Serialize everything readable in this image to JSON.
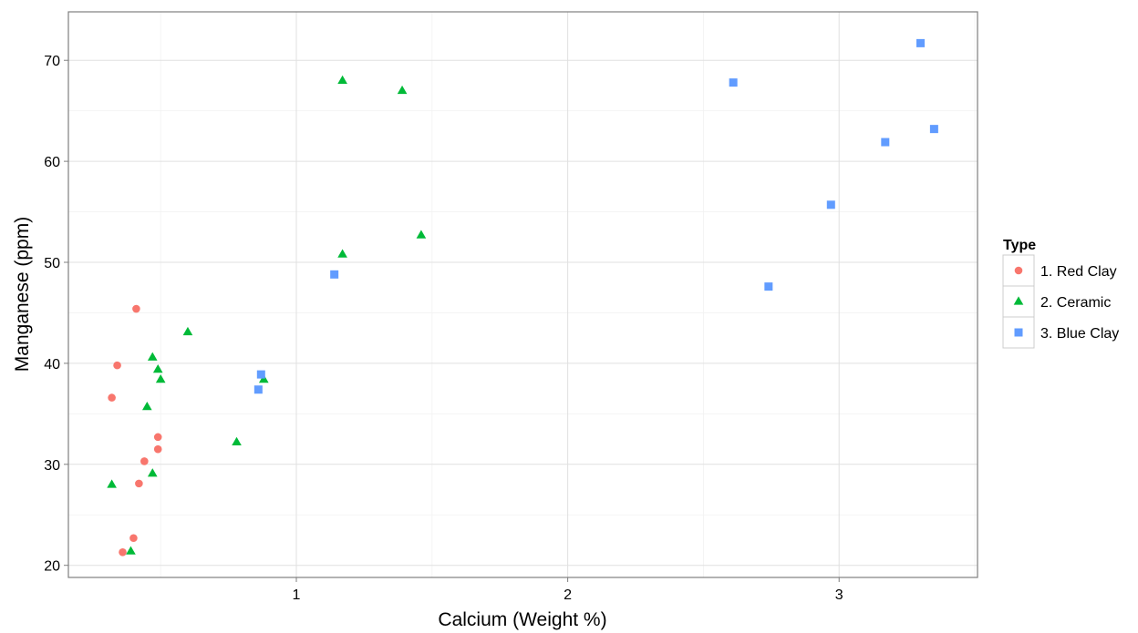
{
  "chart_data": {
    "type": "scatter",
    "xlabel": "Calcium (Weight %)",
    "ylabel": "Manganese (ppm)",
    "xlim": [
      0.16,
      3.51
    ],
    "ylim": [
      18.8,
      74.8
    ],
    "x_ticks": [
      1,
      2,
      3
    ],
    "y_ticks": [
      20,
      30,
      40,
      50,
      60,
      70
    ],
    "grid": true,
    "legend": {
      "title": "Type",
      "position": "right"
    },
    "series": [
      {
        "name": "1. Red Clay",
        "color": "#f8766d",
        "shape": "circle",
        "points": [
          {
            "x": 0.41,
            "y": 45.4
          },
          {
            "x": 0.34,
            "y": 39.8
          },
          {
            "x": 0.32,
            "y": 36.6
          },
          {
            "x": 0.49,
            "y": 32.7
          },
          {
            "x": 0.49,
            "y": 31.5
          },
          {
            "x": 0.44,
            "y": 30.3
          },
          {
            "x": 0.42,
            "y": 28.1
          },
          {
            "x": 0.4,
            "y": 22.7
          },
          {
            "x": 0.36,
            "y": 21.3
          }
        ]
      },
      {
        "name": "2. Ceramic",
        "color": "#00ba38",
        "shape": "triangle",
        "points": [
          {
            "x": 1.17,
            "y": 68.0
          },
          {
            "x": 1.39,
            "y": 67.0
          },
          {
            "x": 1.46,
            "y": 52.7
          },
          {
            "x": 1.17,
            "y": 50.8
          },
          {
            "x": 0.6,
            "y": 43.1
          },
          {
            "x": 0.47,
            "y": 40.6
          },
          {
            "x": 0.49,
            "y": 39.4
          },
          {
            "x": 0.5,
            "y": 38.4
          },
          {
            "x": 0.88,
            "y": 38.4
          },
          {
            "x": 0.45,
            "y": 35.7
          },
          {
            "x": 0.78,
            "y": 32.2
          },
          {
            "x": 0.47,
            "y": 29.1
          },
          {
            "x": 0.32,
            "y": 28.0
          },
          {
            "x": 0.39,
            "y": 21.4
          }
        ]
      },
      {
        "name": "3. Blue Clay",
        "color": "#619cff",
        "shape": "square",
        "points": [
          {
            "x": 3.3,
            "y": 71.7
          },
          {
            "x": 2.61,
            "y": 67.8
          },
          {
            "x": 3.35,
            "y": 63.2
          },
          {
            "x": 3.17,
            "y": 61.9
          },
          {
            "x": 2.97,
            "y": 55.7
          },
          {
            "x": 1.14,
            "y": 48.8
          },
          {
            "x": 2.74,
            "y": 47.6
          },
          {
            "x": 0.87,
            "y": 38.9
          },
          {
            "x": 0.86,
            "y": 37.4
          }
        ]
      }
    ]
  }
}
